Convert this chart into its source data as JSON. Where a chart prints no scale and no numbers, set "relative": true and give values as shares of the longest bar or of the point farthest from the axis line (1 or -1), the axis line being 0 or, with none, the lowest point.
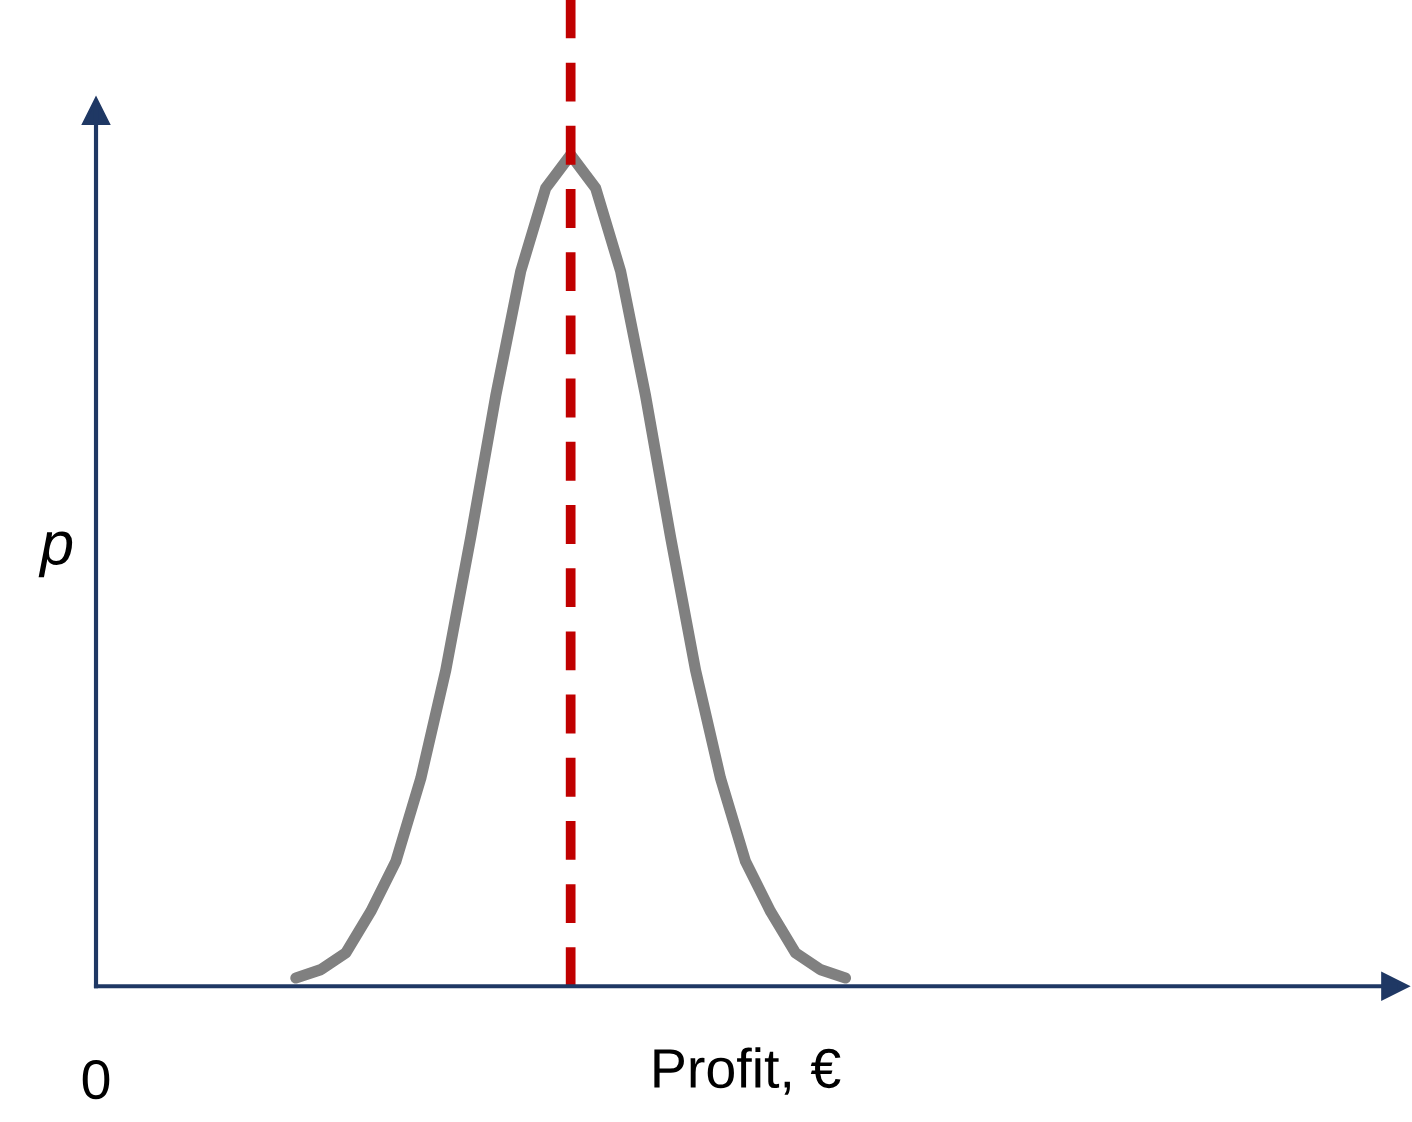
{
  "chart_data": {
    "type": "line",
    "relative": true,
    "xlabel": "Profit, €",
    "ylabel": "p",
    "categories": [
      null,
      null,
      null,
      null,
      null,
      null,
      null,
      null,
      null,
      null,
      null,
      null,
      null,
      null,
      null,
      null,
      null,
      null,
      null,
      null,
      null,
      null,
      null,
      null,
      null,
      null,
      null,
      null,
      null,
      null,
      null,
      null,
      null,
      null,
      null,
      null,
      null,
      null,
      null,
      null,
      null,
      null,
      null,
      null,
      null,
      null,
      null,
      null,
      null,
      null,
      null,
      null,
      null
    ],
    "series": [
      {
        "color": "#808080",
        "values": [
          null,
          null,
          null,
          null,
          null,
          null,
          null,
          null,
          0.01,
          0.02,
          0.04,
          0.09,
          0.15,
          0.25,
          0.38,
          0.54,
          0.71,
          0.86,
          0.96,
          1,
          0.96,
          0.86,
          0.71,
          0.54,
          0.38,
          0.25,
          0.15,
          0.09,
          0.04,
          0.02,
          0.01,
          null,
          null,
          null,
          null,
          null,
          null,
          null,
          null,
          null,
          null,
          null,
          null,
          null,
          null,
          null,
          null,
          null,
          null,
          null,
          null,
          null,
          null
        ]
      }
    ],
    "annotations": [
      "0"
    ],
    "legend": false,
    "marker": "none",
    "line_style": "solid"
  }
}
